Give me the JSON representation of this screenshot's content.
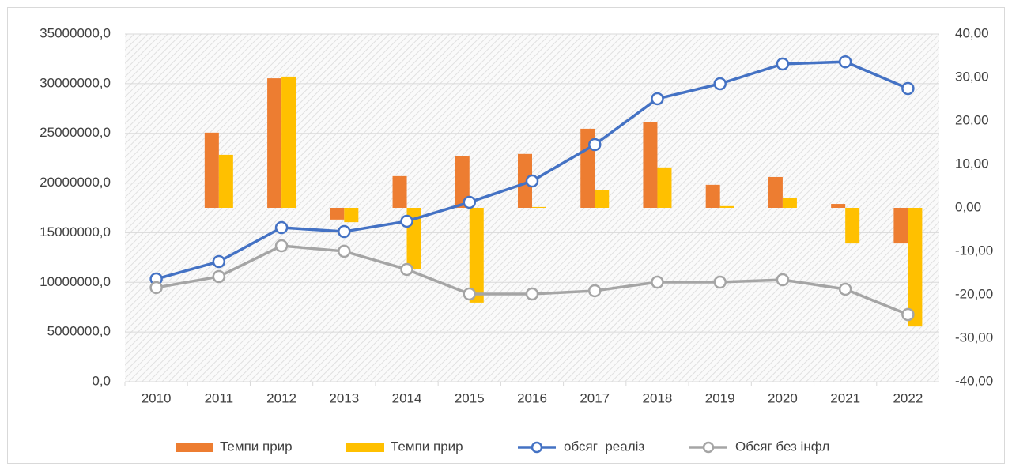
{
  "chart_data": {
    "type": "combo",
    "categories": [
      "2010",
      "2011",
      "2012",
      "2013",
      "2014",
      "2015",
      "2016",
      "2017",
      "2018",
      "2019",
      "2020",
      "2021",
      "2022"
    ],
    "series": [
      {
        "name": "Темпи прир",
        "type": "bar",
        "axis": "y2",
        "color": "#ed7d31",
        "values": [
          null,
          17.3,
          29.8,
          -2.7,
          7.3,
          12.0,
          12.4,
          18.2,
          19.8,
          5.3,
          7.1,
          0.9,
          -8.2
        ]
      },
      {
        "name": "Темпи прир",
        "type": "bar",
        "axis": "y2",
        "color": "#ffc000",
        "values": [
          null,
          12.2,
          30.2,
          -3.3,
          -14.0,
          -21.8,
          0.2,
          4.0,
          9.3,
          0.4,
          2.2,
          -8.2,
          -27.3
        ]
      },
      {
        "name": "обсяг  реаліз",
        "type": "line",
        "color": "#4472c4",
        "values": [
          10340000,
          12090000,
          15510000,
          15110000,
          16150000,
          18060000,
          20200000,
          23860000,
          28480000,
          29990000,
          31980000,
          32200000,
          29510000
        ]
      },
      {
        "name": "Обсяг без інфл",
        "type": "line",
        "color": "#a5a5a5",
        "values": [
          9470000,
          10580000,
          13680000,
          13130000,
          11300000,
          8830000,
          8830000,
          9150000,
          10020000,
          10020000,
          10260000,
          9310000,
          6760000
        ]
      }
    ],
    "ylim": [
      0,
      35000000
    ],
    "yticks": [
      {
        "value": 0,
        "label": "0,0"
      },
      {
        "value": 5000000,
        "label": "5000000,0"
      },
      {
        "value": 10000000,
        "label": "10000000,0"
      },
      {
        "value": 15000000,
        "label": "15000000,0"
      },
      {
        "value": 20000000,
        "label": "20000000,0"
      },
      {
        "value": 25000000,
        "label": "25000000,0"
      },
      {
        "value": 30000000,
        "label": "30000000,0"
      },
      {
        "value": 35000000,
        "label": "35000000,0"
      }
    ],
    "y2lim": [
      -40,
      40
    ],
    "y2ticks": [
      {
        "value": -40,
        "label": "-40,00"
      },
      {
        "value": -30,
        "label": "-30,00"
      },
      {
        "value": -20,
        "label": "-20,00"
      },
      {
        "value": -10,
        "label": "-10,00"
      },
      {
        "value": 0,
        "label": "0,00"
      },
      {
        "value": 10,
        "label": "10,00"
      },
      {
        "value": 20,
        "label": "20,00"
      },
      {
        "value": 30,
        "label": "30,00"
      },
      {
        "value": 40,
        "label": "40,00"
      }
    ],
    "grid": true,
    "legend": "bottom"
  }
}
